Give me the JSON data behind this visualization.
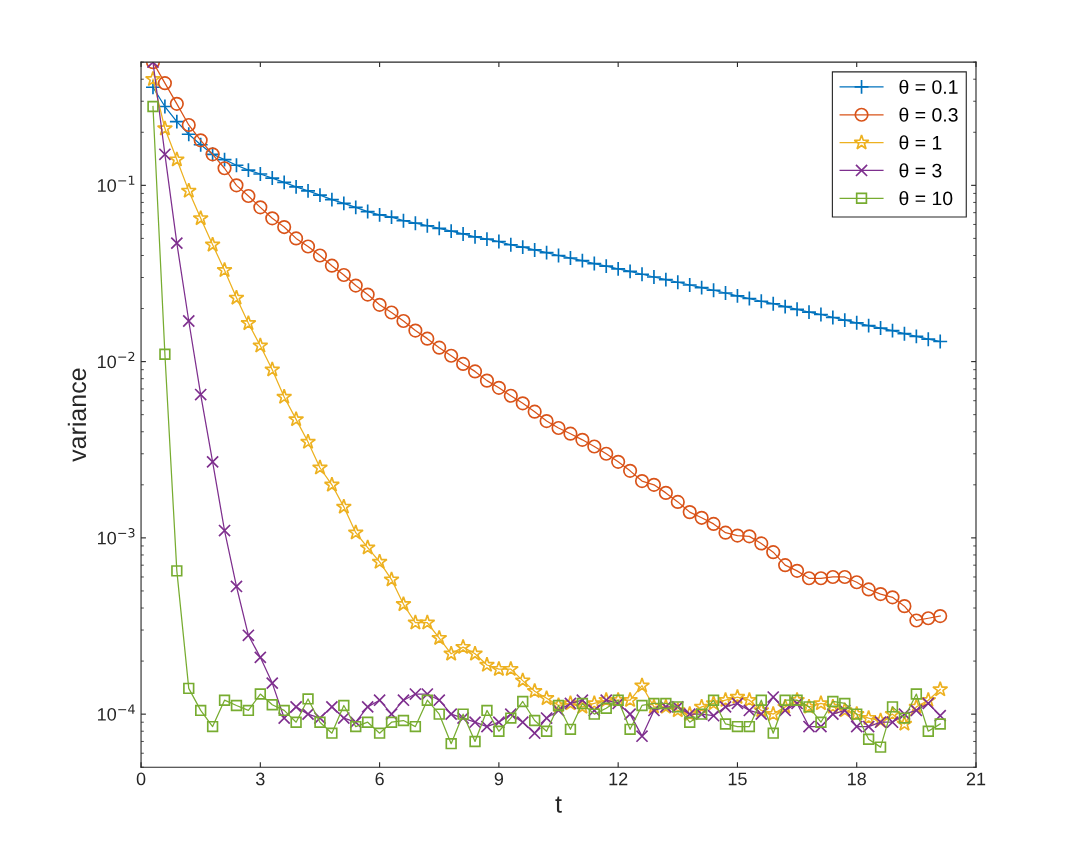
{
  "chart_data": {
    "type": "line",
    "xlabel": "t",
    "ylabel": "variance",
    "log": "y",
    "grid": false,
    "legend": "top right",
    "line_style": "solid",
    "xlim": [
      0,
      21
    ],
    "xticks": [
      0,
      3,
      6,
      9,
      12,
      15,
      18,
      21
    ],
    "ylim": [
      5e-05,
      0.5
    ],
    "yticks": [
      {
        "value": 0.0001,
        "label": "10$^{−4}$"
      },
      {
        "value": 0.001,
        "label": "10$^{−3}$"
      },
      {
        "value": 0.01,
        "label": "10$^{−2}$"
      },
      {
        "value": 0.1,
        "label": "10$^{−1}$"
      }
    ],
    "x": [
      0.3,
      0.6,
      0.9,
      1.2,
      1.5,
      1.8,
      2.1,
      2.4,
      2.7,
      3.0,
      3.3,
      3.6,
      3.9,
      4.2,
      4.5,
      4.8,
      5.1,
      5.4,
      5.7,
      6.0,
      6.3,
      6.6,
      6.9,
      7.2,
      7.5,
      7.8,
      8.1,
      8.4,
      8.7,
      9.0,
      9.3,
      9.6,
      9.9,
      10.2,
      10.5,
      10.8,
      11.1,
      11.4,
      11.7,
      12.0,
      12.3,
      12.6,
      12.9,
      13.2,
      13.5,
      13.8,
      14.1,
      14.4,
      14.7,
      15.0,
      15.3,
      15.6,
      15.9,
      16.2,
      16.5,
      16.8,
      17.1,
      17.4,
      17.7,
      18.0,
      18.3,
      18.6,
      18.9,
      19.2,
      19.5,
      19.8,
      20.1
    ],
    "series": [
      {
        "name": "θ = 0.1",
        "color": "#0072bd",
        "marker": "plus",
        "values": [
          0.36,
          0.28,
          0.23,
          0.195,
          0.17,
          0.15,
          0.14,
          0.13,
          0.122,
          0.116,
          0.11,
          0.104,
          0.098,
          0.093,
          0.088,
          0.083,
          0.079,
          0.075,
          0.071,
          0.068,
          0.066,
          0.063,
          0.061,
          0.059,
          0.057,
          0.055,
          0.053,
          0.051,
          0.0495,
          0.048,
          0.046,
          0.0446,
          0.043,
          0.0415,
          0.04,
          0.0387,
          0.0374,
          0.036,
          0.0348,
          0.0336,
          0.0325,
          0.0313,
          0.0302,
          0.0292,
          0.0282,
          0.0272,
          0.0263,
          0.0254,
          0.0245,
          0.0236,
          0.0228,
          0.022,
          0.0213,
          0.0205,
          0.0198,
          0.0191,
          0.0185,
          0.0178,
          0.0172,
          0.0166,
          0.016,
          0.0155,
          0.015,
          0.0144,
          0.0139,
          0.0134,
          0.013
        ]
      },
      {
        "name": "θ = 0.3",
        "color": "#d95319",
        "marker": "circle",
        "values": [
          0.5,
          0.38,
          0.29,
          0.22,
          0.18,
          0.15,
          0.125,
          0.1,
          0.087,
          0.075,
          0.065,
          0.058,
          0.05,
          0.045,
          0.04,
          0.035,
          0.031,
          0.027,
          0.024,
          0.021,
          0.019,
          0.017,
          0.015,
          0.0135,
          0.012,
          0.0108,
          0.0097,
          0.0088,
          0.0078,
          0.0071,
          0.0064,
          0.0058,
          0.0052,
          0.0046,
          0.0042,
          0.0039,
          0.0036,
          0.0033,
          0.003,
          0.0027,
          0.0024,
          0.0021,
          0.002,
          0.0018,
          0.0016,
          0.0014,
          0.0013,
          0.0012,
          0.00107,
          0.00103,
          0.00102,
          0.00093,
          0.00083,
          0.0007,
          0.00065,
          0.00059,
          0.00059,
          0.0006,
          0.0006,
          0.00056,
          0.00051,
          0.00048,
          0.00046,
          0.00041,
          0.00034,
          0.00035,
          0.00036
        ]
      },
      {
        "name": "θ = 1",
        "color": "#edb120",
        "marker": "star",
        "values": [
          0.4,
          0.21,
          0.14,
          0.093,
          0.065,
          0.046,
          0.033,
          0.023,
          0.0165,
          0.0123,
          0.009,
          0.0063,
          0.0047,
          0.0035,
          0.0025,
          0.002,
          0.0015,
          0.00107,
          0.00088,
          0.00073,
          0.00058,
          0.00042,
          0.00033,
          0.00033,
          0.00027,
          0.00022,
          0.00024,
          0.00022,
          0.00019,
          0.00018,
          0.00018,
          0.000155,
          0.000135,
          0.000123,
          0.000112,
          0.000115,
          0.00011,
          0.000115,
          0.00012,
          0.00012,
          0.00012,
          0.000145,
          0.00011,
          0.00011,
          0.000105,
          0.0001,
          0.00011,
          0.000115,
          0.00012,
          0.000125,
          0.00012,
          0.000105,
          0.0001,
          0.00011,
          0.00012,
          0.00011,
          0.000115,
          0.00011,
          0.000105,
          0.0001,
          9.5e-05,
          9.2e-05,
          0.0001,
          8.8e-05,
          0.00011,
          0.00012,
          0.000138
        ]
      },
      {
        "name": "θ = 3",
        "color": "#7e2f8e",
        "marker": "cross",
        "values": [
          0.5,
          0.15,
          0.047,
          0.017,
          0.0065,
          0.0027,
          0.0011,
          0.00053,
          0.00028,
          0.00021,
          0.00015,
          9.5e-05,
          0.00011,
          0.0001,
          9.5e-05,
          0.00011,
          9.5e-05,
          9e-05,
          0.00011,
          0.00012,
          0.0001,
          0.00012,
          0.00013,
          0.00013,
          0.00012,
          0.0001,
          9.5e-05,
          9e-05,
          8.5e-05,
          9e-05,
          0.0001,
          9e-05,
          7.8e-05,
          9.5e-05,
          0.000105,
          0.000115,
          0.00012,
          0.000105,
          0.00012,
          0.000115,
          0.0001,
          7.5e-05,
          0.000105,
          0.00011,
          0.00011,
          0.0001,
          0.0001,
          9.8e-05,
          0.00011,
          0.000115,
          0.000105,
          0.0001,
          0.000125,
          0.000105,
          0.000115,
          8.5e-05,
          8.5e-05,
          0.0001,
          0.000105,
          8.5e-05,
          8.5e-05,
          9e-05,
          9e-05,
          0.0001,
          0.000105,
          0.000115,
          9.8e-05
        ]
      },
      {
        "name": "θ = 10",
        "color": "#77ac30",
        "marker": "square",
        "values": [
          0.28,
          0.011,
          0.00065,
          0.00014,
          0.000105,
          8.5e-05,
          0.00012,
          0.000112,
          0.000105,
          0.00013,
          0.000113,
          0.000105,
          9e-05,
          0.000122,
          9e-05,
          7.8e-05,
          0.000112,
          8.5e-05,
          9e-05,
          7.8e-05,
          9e-05,
          9.2e-05,
          8.5e-05,
          0.00012,
          0.0001,
          6.8e-05,
          0.0001,
          7e-05,
          0.000105,
          8e-05,
          9.5e-05,
          0.000118,
          9.2e-05,
          8e-05,
          0.000112,
          8.2e-05,
          0.000115,
          0.0001,
          0.000108,
          0.00012,
          8.2e-05,
          0.000112,
          0.000115,
          0.000115,
          0.00011,
          9e-05,
          0.0001,
          0.00012,
          8.8e-05,
          8.5e-05,
          8.5e-05,
          0.00012,
          7.8e-05,
          0.00012,
          0.00012,
          0.00011,
          9e-05,
          0.000118,
          0.000115,
          0.0001,
          7.2e-05,
          6.5e-05,
          0.00011,
          9.5e-05,
          0.00013,
          8e-05,
          8.8e-05
        ]
      }
    ]
  }
}
